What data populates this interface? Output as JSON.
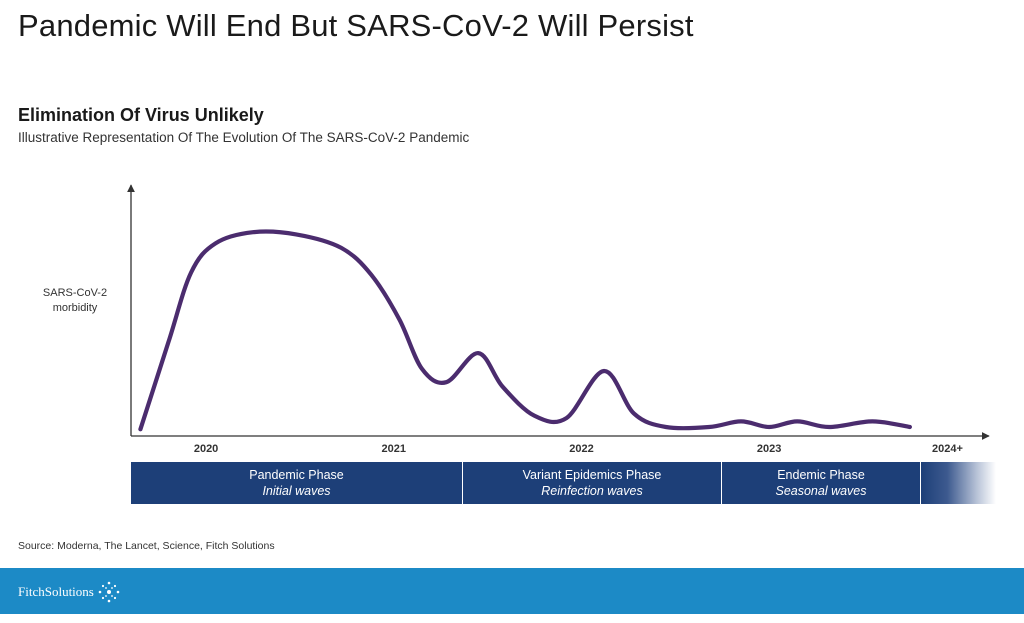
{
  "header": {
    "title": "Pandemic Will End But SARS-CoV-2 Will Persist"
  },
  "chart_data": {
    "type": "line",
    "title": "Elimination Of Virus Unlikely",
    "subtitle": "Illustrative Representation Of The Evolution Of The SARS-CoV-2 Pandemic",
    "ylabel": [
      "SARS-CoV-2",
      "morbidity"
    ],
    "xlabel": "",
    "x_ticks": [
      {
        "label": "2020",
        "x": 2020.0
      },
      {
        "label": "2021",
        "x": 2021.0
      },
      {
        "label": "2022",
        "x": 2022.0
      },
      {
        "label": "2023",
        "x": 2023.0
      },
      {
        "label": "2024+",
        "x": 2023.95
      }
    ],
    "xlim": [
      2019.6,
      2024.15
    ],
    "ylim": [
      0,
      100
    ],
    "grid": false,
    "series": [
      {
        "name": "",
        "color": "#4b2c6e",
        "points": [
          [
            2019.65,
            3
          ],
          [
            2019.8,
            42
          ],
          [
            2019.92,
            73
          ],
          [
            2020.05,
            86
          ],
          [
            2020.25,
            91
          ],
          [
            2020.48,
            90
          ],
          [
            2020.72,
            84
          ],
          [
            2020.88,
            72
          ],
          [
            2021.03,
            52
          ],
          [
            2021.15,
            30
          ],
          [
            2021.28,
            24
          ],
          [
            2021.45,
            37
          ],
          [
            2021.58,
            22
          ],
          [
            2021.75,
            9
          ],
          [
            2021.92,
            8
          ],
          [
            2022.12,
            29
          ],
          [
            2022.28,
            10
          ],
          [
            2022.45,
            4
          ],
          [
            2022.68,
            4
          ],
          [
            2022.85,
            6.5
          ],
          [
            2023.0,
            4
          ],
          [
            2023.15,
            6.5
          ],
          [
            2023.32,
            4
          ],
          [
            2023.55,
            6.5
          ],
          [
            2023.75,
            4
          ]
        ]
      }
    ]
  },
  "phases": [
    {
      "name": "Pandemic Phase",
      "desc": "Initial waves"
    },
    {
      "name": "Variant Epidemics Phase",
      "desc": "Reinfection waves"
    },
    {
      "name": "Endemic Phase",
      "desc": "Seasonal waves"
    }
  ],
  "source": "Source: Moderna, The Lancet, Science, Fitch Solutions",
  "footer": {
    "logo_text": "FitchSolutions",
    "logo_icon": "star-burst-icon",
    "band_color": "#1c8ac6",
    "phase_color": "#1d3f78",
    "line_color": "#4b2c6e"
  }
}
